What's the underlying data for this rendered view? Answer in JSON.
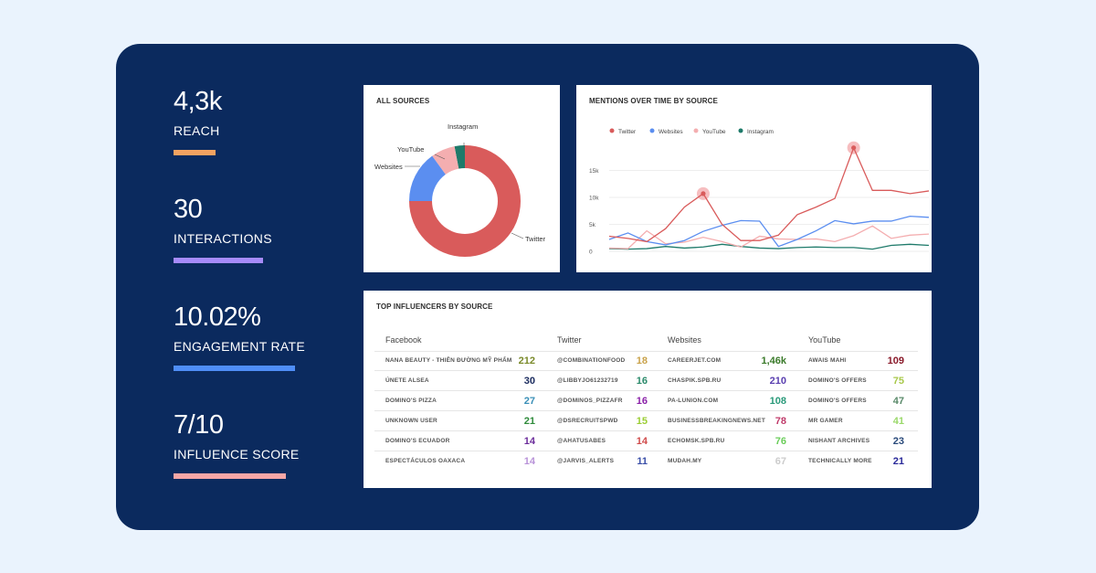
{
  "kpis": [
    {
      "value": "4,3k",
      "label": "REACH",
      "color": "#f4a261"
    },
    {
      "value": "30",
      "label": "INTERACTIONS",
      "color": "#a78bfa"
    },
    {
      "value": "10.02%",
      "label": "ENGAGEMENT RATE",
      "color": "#4f8ef7"
    },
    {
      "value": "7/10",
      "label": "INFLUENCE SCORE",
      "color": "#f7a6a6"
    }
  ],
  "sources_card": {
    "title": "ALL SOURCES",
    "labels": [
      "Instagram",
      "YouTube",
      "Websites",
      "Twitter"
    ]
  },
  "mentions_card": {
    "title": "MENTIONS OVER TIME BY SOURCE",
    "legend": [
      "Twitter",
      "Websites",
      "YouTube",
      "Instagram"
    ],
    "yticks": [
      "15k",
      "10k",
      "5k",
      "0"
    ]
  },
  "influencers_card": {
    "title": "TOP INFLUENCERS BY SOURCE",
    "columns": [
      {
        "header": "Facebook",
        "rows": [
          {
            "name": "NANA BEAUTY - THIÊN ĐƯỜNG MỸ PHẨM",
            "value": "212",
            "color": "#7a8a2a"
          },
          {
            "name": "ÚNETE ALSEA",
            "value": "30",
            "color": "#1a2b5e"
          },
          {
            "name": "DOMINO'S PIZZA",
            "value": "27",
            "color": "#3a8fb7"
          },
          {
            "name": "UNKNOWN USER",
            "value": "21",
            "color": "#2e8b3a"
          },
          {
            "name": "DOMINO'S ECUADOR",
            "value": "14",
            "color": "#6a2b9a"
          },
          {
            "name": "ESPECTÁCULOS OAXACA",
            "value": "14",
            "color": "#b892d8"
          }
        ]
      },
      {
        "header": "Twitter",
        "rows": [
          {
            "name": "@COMBINATIONFOOD",
            "value": "18",
            "color": "#c9a24a"
          },
          {
            "name": "@LIBBYJO61232719",
            "value": "16",
            "color": "#2a8a6a"
          },
          {
            "name": "@DOMINOS_PIZZAFR",
            "value": "16",
            "color": "#8a1fa8"
          },
          {
            "name": "@DSRECRUITSPWD",
            "value": "15",
            "color": "#9acd32"
          },
          {
            "name": "@AHATUSABES",
            "value": "14",
            "color": "#d04a4a"
          },
          {
            "name": "@JARVIS_ALERTS",
            "value": "11",
            "color": "#3a4fa8"
          }
        ]
      },
      {
        "header": "Websites",
        "rows": [
          {
            "name": "CAREERJET.COM",
            "value": "1,46k",
            "color": "#3a7a2a"
          },
          {
            "name": "CHASPIK.SPB.RU",
            "value": "210",
            "color": "#5a3fb0"
          },
          {
            "name": "PA-LUNION.COM",
            "value": "108",
            "color": "#2a9a7a"
          },
          {
            "name": "BUSINESSBREAKINGNEWS.NET",
            "value": "78",
            "color": "#c03a6a"
          },
          {
            "name": "ECHOMSK.SPB.RU",
            "value": "76",
            "color": "#6acd5a"
          },
          {
            "name": "MUDAH.MY",
            "value": "67",
            "color": "#cccccc"
          }
        ]
      },
      {
        "header": "YouTube",
        "rows": [
          {
            "name": "AWAIS MAHI",
            "value": "109",
            "color": "#8a1a2a"
          },
          {
            "name": "DOMINO'S OFFERS",
            "value": "75",
            "color": "#a8c84a"
          },
          {
            "name": "DOMINO'S OFFERS",
            "value": "47",
            "color": "#5a8a6a"
          },
          {
            "name": "MR GAMER",
            "value": "41",
            "color": "#9ad86a"
          },
          {
            "name": "NISHANT ARCHIVES",
            "value": "23",
            "color": "#2a4a7a"
          },
          {
            "name": "TECHNICALLY MORE",
            "value": "21",
            "color": "#2a2a9a"
          }
        ]
      }
    ]
  },
  "chart_data": [
    {
      "type": "pie",
      "labels": [
        "Twitter",
        "Websites",
        "YouTube",
        "Instagram"
      ],
      "values": [
        75,
        15,
        7,
        3
      ],
      "colors": [
        "#d95b5b",
        "#5b8ef0",
        "#f4aeb0",
        "#1e7a6a"
      ]
    },
    {
      "type": "line",
      "x": [
        0,
        1,
        2,
        3,
        4,
        5,
        6,
        7,
        8,
        9,
        10,
        11,
        12,
        13,
        14,
        15,
        16,
        17
      ],
      "ylim": [
        0,
        20000
      ],
      "yticks": [
        "15k",
        "10k",
        "5k",
        "0"
      ],
      "series": [
        {
          "name": "Twitter",
          "color": "#d95b5b",
          "values": [
            2800,
            2400,
            1800,
            4200,
            8200,
            10700,
            5000,
            2000,
            2000,
            3000,
            6800,
            8200,
            9800,
            19200,
            11300,
            11300,
            10700,
            11200
          ]
        },
        {
          "name": "Websites",
          "color": "#5b8ef0",
          "values": [
            2200,
            3400,
            1800,
            1200,
            2000,
            3700,
            4800,
            5700,
            5600,
            900,
            2200,
            3800,
            5700,
            5100,
            5600,
            5600,
            6500,
            6300
          ]
        },
        {
          "name": "YouTube",
          "color": "#f4aeb0",
          "values": [
            600,
            500,
            3800,
            1400,
            1700,
            2600,
            1800,
            800,
            2800,
            2300,
            2200,
            2300,
            1800,
            2900,
            4700,
            2400,
            3000,
            3200
          ]
        },
        {
          "name": "Instagram",
          "color": "#1e7a6a",
          "values": [
            500,
            400,
            500,
            900,
            600,
            800,
            1300,
            900,
            600,
            500,
            700,
            800,
            700,
            700,
            400,
            1100,
            1300,
            1100
          ]
        }
      ],
      "highlights": [
        [
          5,
          10700
        ],
        [
          13,
          19200
        ]
      ]
    }
  ]
}
